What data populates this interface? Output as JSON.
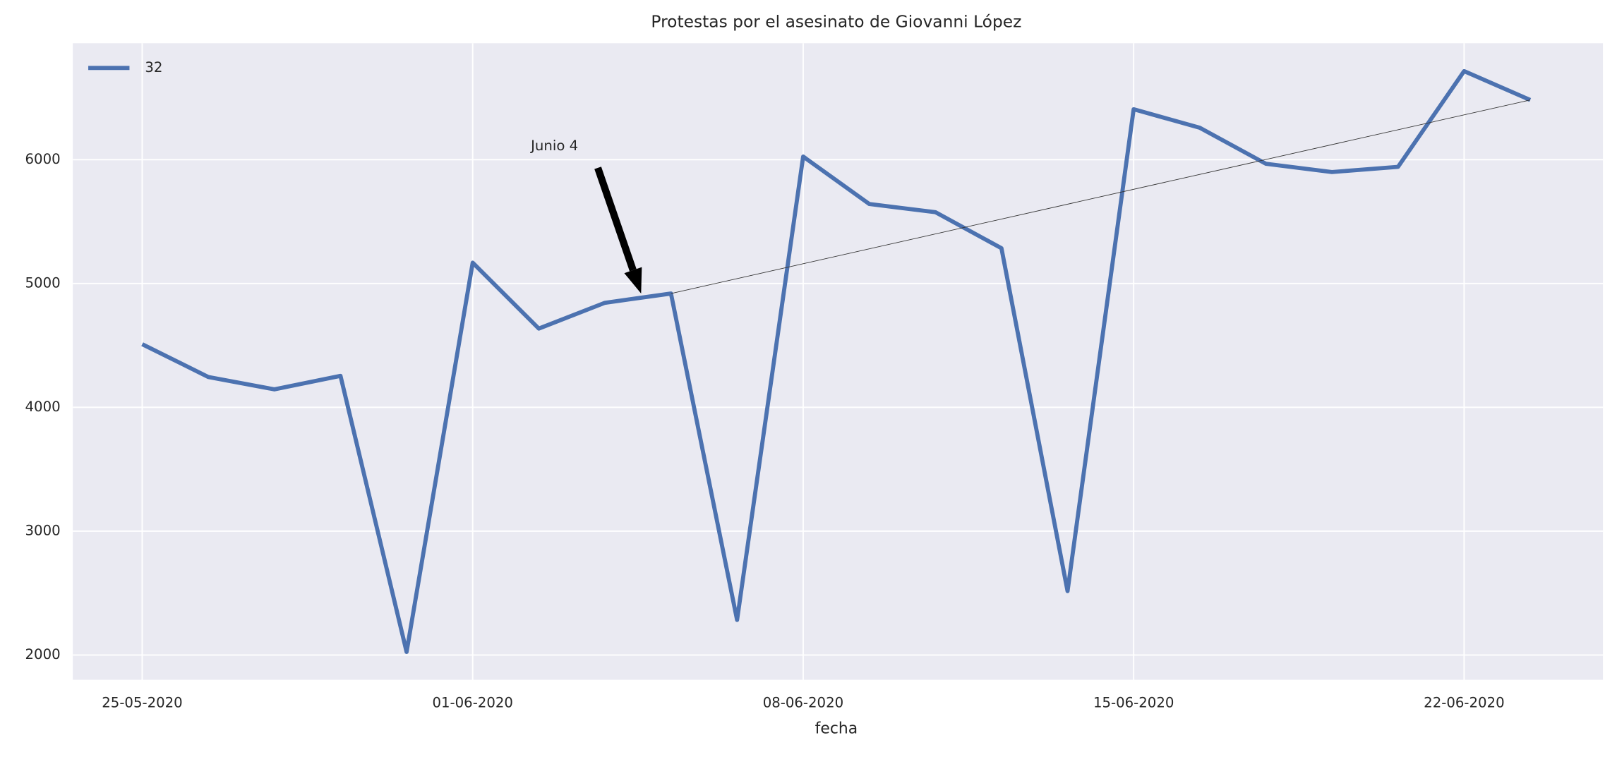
{
  "chart_data": {
    "type": "line",
    "title": "Protestas por el asesinato de Giovanni López",
    "x_label": "fecha",
    "x": [
      "25-05-2020",
      "26-05-2020",
      "27-05-2020",
      "28-05-2020",
      "29-05-2020",
      "01-06-2020",
      "02-06-2020",
      "03-06-2020",
      "04-06-2020",
      "05-06-2020",
      "08-06-2020",
      "09-06-2020",
      "10-06-2020",
      "11-06-2020",
      "12-06-2020",
      "15-06-2020",
      "16-06-2020",
      "17-06-2020",
      "18-06-2020",
      "19-06-2020",
      "22-06-2020",
      "23-06-2020"
    ],
    "series": [
      {
        "name": "32",
        "color": "#4c72b0",
        "values": [
          4510,
          4245,
          4145,
          4254,
          2025,
          5168,
          4636,
          4844,
          4919,
          2283,
          6025,
          5642,
          5576,
          5285,
          2516,
          6407,
          6258,
          5967,
          5900,
          5942,
          6715,
          6482
        ]
      }
    ],
    "annotations": [
      {
        "text": "Junio 4",
        "x": "04-06-2020"
      }
    ],
    "ylim": [
      1800,
      6940
    ],
    "yticks": [
      2000,
      3000,
      4000,
      5000,
      6000,
      7000
    ],
    "xticks": [
      "25-05-2020",
      "01-06-2020",
      "08-06-2020",
      "15-06-2020",
      "22-06-2020"
    ],
    "grid": true,
    "legend": "upper left"
  }
}
